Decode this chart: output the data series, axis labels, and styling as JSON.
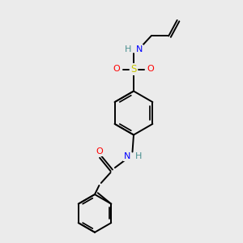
{
  "bg_color": "#ebebeb",
  "atom_colors": {
    "C": "#000000",
    "H": "#4a9090",
    "N": "#0000ff",
    "O": "#ff0000",
    "S": "#c8c800"
  },
  "line_color": "#000000",
  "line_width": 1.4,
  "figsize": [
    3.0,
    3.0
  ],
  "dpi": 100,
  "xlim": [
    0,
    10
  ],
  "ylim": [
    0,
    10
  ]
}
